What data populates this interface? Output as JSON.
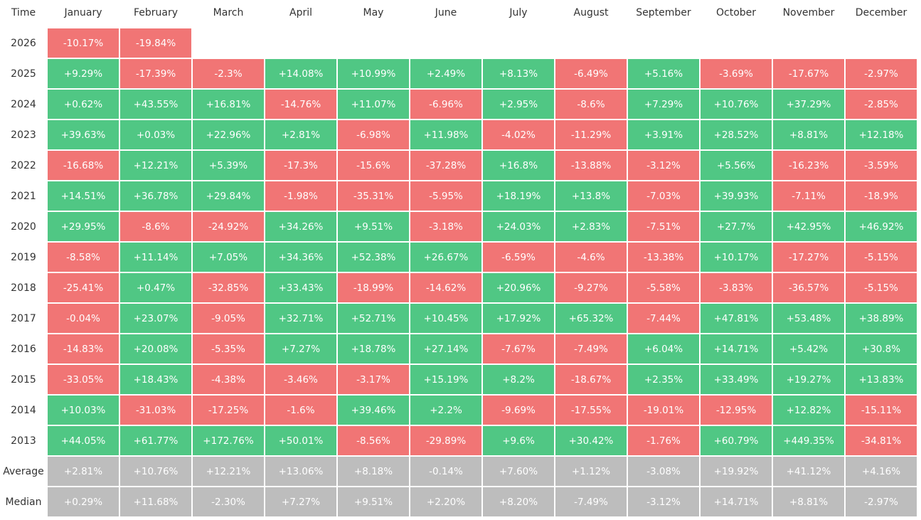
{
  "table": {
    "columns": [
      "Time",
      "January",
      "February",
      "March",
      "April",
      "May",
      "June",
      "July",
      "August",
      "September",
      "October",
      "November",
      "December"
    ],
    "rows": [
      {
        "label": "2026",
        "cells": [
          "-10.17%",
          "-19.84%"
        ]
      },
      {
        "label": "2025",
        "cells": [
          "+9.29%",
          "-17.39%",
          "-2.3%",
          "+14.08%",
          "+10.99%",
          "+2.49%",
          "+8.13%",
          "-6.49%",
          "+5.16%",
          "-3.69%",
          "-17.67%",
          "-2.97%"
        ]
      },
      {
        "label": "2024",
        "cells": [
          "+0.62%",
          "+43.55%",
          "+16.81%",
          "-14.76%",
          "+11.07%",
          "-6.96%",
          "+2.95%",
          "-8.6%",
          "+7.29%",
          "+10.76%",
          "+37.29%",
          "-2.85%"
        ]
      },
      {
        "label": "2023",
        "cells": [
          "+39.63%",
          "+0.03%",
          "+22.96%",
          "+2.81%",
          "-6.98%",
          "+11.98%",
          "-4.02%",
          "-11.29%",
          "+3.91%",
          "+28.52%",
          "+8.81%",
          "+12.18%"
        ]
      },
      {
        "label": "2022",
        "cells": [
          "-16.68%",
          "+12.21%",
          "+5.39%",
          "-17.3%",
          "-15.6%",
          "-37.28%",
          "+16.8%",
          "-13.88%",
          "-3.12%",
          "+5.56%",
          "-16.23%",
          "-3.59%"
        ]
      },
      {
        "label": "2021",
        "cells": [
          "+14.51%",
          "+36.78%",
          "+29.84%",
          "-1.98%",
          "-35.31%",
          "-5.95%",
          "+18.19%",
          "+13.8%",
          "-7.03%",
          "+39.93%",
          "-7.11%",
          "-18.9%"
        ]
      },
      {
        "label": "2020",
        "cells": [
          "+29.95%",
          "-8.6%",
          "-24.92%",
          "+34.26%",
          "+9.51%",
          "-3.18%",
          "+24.03%",
          "+2.83%",
          "-7.51%",
          "+27.7%",
          "+42.95%",
          "+46.92%"
        ]
      },
      {
        "label": "2019",
        "cells": [
          "-8.58%",
          "+11.14%",
          "+7.05%",
          "+34.36%",
          "+52.38%",
          "+26.67%",
          "-6.59%",
          "-4.6%",
          "-13.38%",
          "+10.17%",
          "-17.27%",
          "-5.15%"
        ]
      },
      {
        "label": "2018",
        "cells": [
          "-25.41%",
          "+0.47%",
          "-32.85%",
          "+33.43%",
          "-18.99%",
          "-14.62%",
          "+20.96%",
          "-9.27%",
          "-5.58%",
          "-3.83%",
          "-36.57%",
          "-5.15%"
        ]
      },
      {
        "label": "2017",
        "cells": [
          "-0.04%",
          "+23.07%",
          "-9.05%",
          "+32.71%",
          "+52.71%",
          "+10.45%",
          "+17.92%",
          "+65.32%",
          "-7.44%",
          "+47.81%",
          "+53.48%",
          "+38.89%"
        ]
      },
      {
        "label": "2016",
        "cells": [
          "-14.83%",
          "+20.08%",
          "-5.35%",
          "+7.27%",
          "+18.78%",
          "+27.14%",
          "-7.67%",
          "-7.49%",
          "+6.04%",
          "+14.71%",
          "+5.42%",
          "+30.8%"
        ]
      },
      {
        "label": "2015",
        "cells": [
          "-33.05%",
          "+18.43%",
          "-4.38%",
          "-3.46%",
          "-3.17%",
          "+15.19%",
          "+8.2%",
          "-18.67%",
          "+2.35%",
          "+33.49%",
          "+19.27%",
          "+13.83%"
        ]
      },
      {
        "label": "2014",
        "cells": [
          "+10.03%",
          "-31.03%",
          "-17.25%",
          "-1.6%",
          "+39.46%",
          "+2.2%",
          "-9.69%",
          "-17.55%",
          "-19.01%",
          "-12.95%",
          "+12.82%",
          "-15.11%"
        ]
      },
      {
        "label": "2013",
        "cells": [
          "+44.05%",
          "+61.77%",
          "+172.76%",
          "+50.01%",
          "-8.56%",
          "-29.89%",
          "+9.6%",
          "+30.42%",
          "-1.76%",
          "+60.79%",
          "+449.35%",
          "-34.81%"
        ]
      }
    ],
    "summary_rows": [
      {
        "label": "Average",
        "cells": [
          "+2.81%",
          "+10.76%",
          "+12.21%",
          "+13.06%",
          "+8.18%",
          "-0.14%",
          "+7.60%",
          "+1.12%",
          "-3.08%",
          "+19.92%",
          "+41.12%",
          "+4.16%"
        ]
      },
      {
        "label": "Median",
        "cells": [
          "+0.29%",
          "+11.68%",
          "-2.30%",
          "+7.27%",
          "+9.51%",
          "+2.20%",
          "+8.20%",
          "-7.49%",
          "-3.12%",
          "+14.71%",
          "+8.81%",
          "-2.97%"
        ]
      }
    ]
  },
  "colors": {
    "positive": "#50c784",
    "negative": "#f17575",
    "summary": "#bdbdbd"
  }
}
